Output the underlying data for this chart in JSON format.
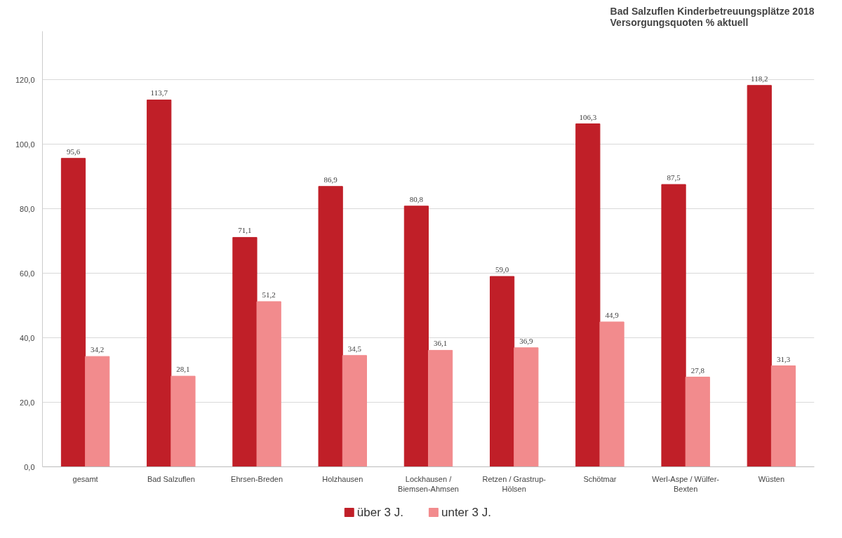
{
  "chart_data": {
    "type": "bar",
    "title": "Bad Salzuflen Kinderbetreuungsplätze 2018\nVersorgungsquoten % aktuell",
    "categories": [
      "gesamt",
      "Bad Salzuflen",
      "Ehrsen-Breden",
      "Holzhausen",
      "Lockhausen /\nBiemsen-Ahmsen",
      "Retzen / Grastrup-\nHölsen",
      "Schötmar",
      "Werl-Aspe / Wülfer-\nBexten",
      "Wüsten"
    ],
    "series": [
      {
        "name": "über 3 J.",
        "color": "#c01f28",
        "values": [
          95.6,
          113.7,
          71.1,
          86.9,
          80.8,
          59.0,
          106.3,
          87.5,
          118.2
        ],
        "value_labels": [
          "95,6",
          "113,7",
          "71,1",
          "86,9",
          "80,8",
          "59,0",
          "106,3",
          "87,5",
          "118,2"
        ]
      },
      {
        "name": "unter 3 J.",
        "color": "#f28b8d",
        "values": [
          34.2,
          28.1,
          51.2,
          34.5,
          36.1,
          36.9,
          44.9,
          27.8,
          31.3
        ],
        "value_labels": [
          "34,2",
          "28,1",
          "51,2",
          "34,5",
          "36,1",
          "36,9",
          "44,9",
          "27,8",
          "31,3"
        ]
      }
    ],
    "ylim": [
      0,
      135
    ],
    "yticks": [
      {
        "value": 0,
        "label": "0,0"
      },
      {
        "value": 20,
        "label": "20,0"
      },
      {
        "value": 40,
        "label": "40,0"
      },
      {
        "value": 60,
        "label": "60,0"
      },
      {
        "value": 80,
        "label": "80,0"
      },
      {
        "value": 100,
        "label": "100,0"
      },
      {
        "value": 120,
        "label": "120,0"
      }
    ],
    "grid": "y",
    "legend": "bottom"
  }
}
